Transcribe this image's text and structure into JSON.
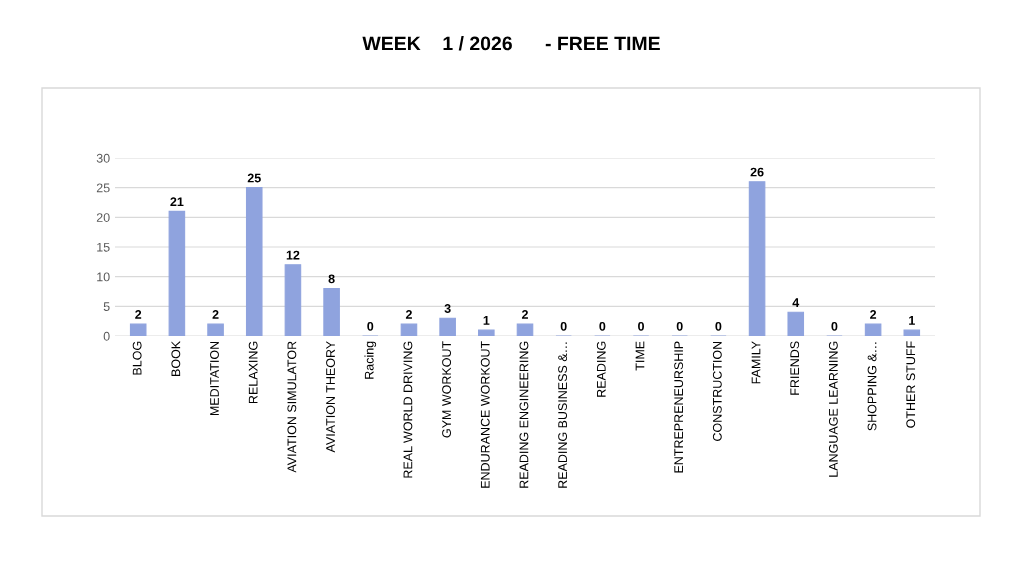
{
  "chart_data": {
    "type": "bar",
    "title": "WEEK    1 / 2026      - FREE TIME",
    "categories": [
      "BLOG",
      "BOOK",
      "MEDITATION",
      "RELAXING",
      "AVIATION SIMULATOR",
      "AVIATION THEORY",
      "Racing",
      "REAL WORLD DRIVING",
      "GYM WORKOUT",
      "ENDURANCE WORKOUT",
      "READING ENGINEERING",
      "READING BUSINESS &…",
      "READING",
      "TIME",
      "ENTREPRENEURSHIP",
      "CONSTRUCTION",
      "FAMILY",
      "FRIENDS",
      "LANGUAGE LEARNING",
      "SHOPPING &…",
      "OTHER STUFF"
    ],
    "values": [
      2,
      21,
      2,
      25,
      12,
      8,
      0,
      2,
      3,
      1,
      2,
      0,
      0,
      0,
      0,
      0,
      26,
      4,
      0,
      2,
      1
    ],
    "color": "#8fa3de",
    "ylim": [
      0,
      30
    ],
    "yticks": [
      0,
      5,
      10,
      15,
      20,
      25,
      30
    ],
    "grid": "y",
    "data_labels": true
  }
}
